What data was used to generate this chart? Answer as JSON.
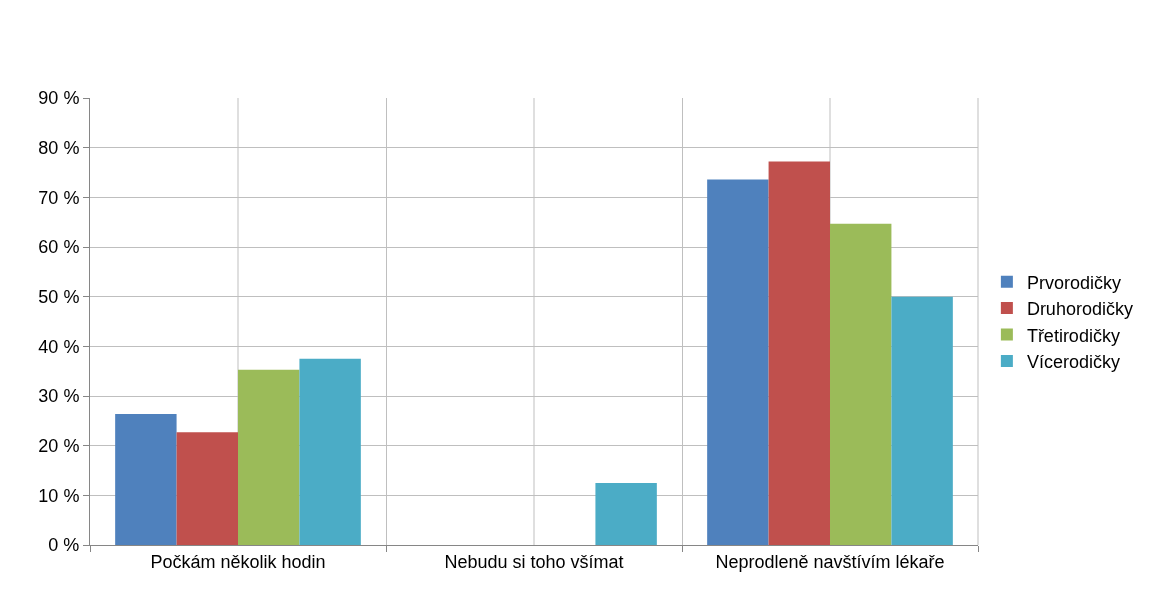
{
  "chart_data": {
    "type": "bar",
    "categories": [
      "Počkám několik hodin",
      "Nebudu si toho všímat",
      "Neprodleně navštívím lékaře"
    ],
    "series": [
      {
        "name": "Prvorodičky",
        "color": "#4f81bd",
        "values": [
          26.4,
          0,
          73.6
        ]
      },
      {
        "name": "Druhorodičky",
        "color": "#c0504d",
        "values": [
          22.7,
          0,
          77.2
        ]
      },
      {
        "name": "Třetirodičky",
        "color": "#9bbb59",
        "values": [
          35.3,
          0,
          64.7
        ]
      },
      {
        "name": "Vícerodičky",
        "color": "#4bacc6",
        "values": [
          37.5,
          12.5,
          50
        ]
      }
    ],
    "ylim": [
      0,
      90
    ],
    "yticks": [
      {
        "value": 0,
        "label": "0 %"
      },
      {
        "value": 10,
        "label": "10 %"
      },
      {
        "value": 20,
        "label": "20 %"
      },
      {
        "value": 30,
        "label": "30 %"
      },
      {
        "value": 40,
        "label": "40 %"
      },
      {
        "value": 50,
        "label": "50 %"
      },
      {
        "value": 60,
        "label": "60 %"
      },
      {
        "value": 70,
        "label": "70 %"
      },
      {
        "value": 80,
        "label": "80 %"
      },
      {
        "value": 90,
        "label": "90 %"
      }
    ],
    "grid": true,
    "legend": "right"
  }
}
